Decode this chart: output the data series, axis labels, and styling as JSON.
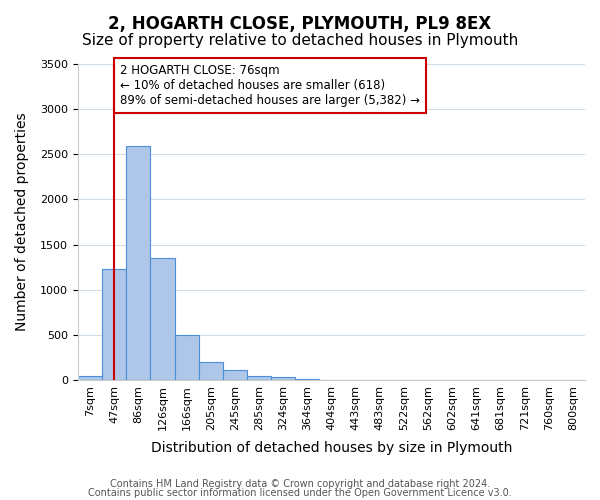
{
  "title": "2, HOGARTH CLOSE, PLYMOUTH, PL9 8EX",
  "subtitle": "Size of property relative to detached houses in Plymouth",
  "xlabel": "Distribution of detached houses by size in Plymouth",
  "ylabel": "Number of detached properties",
  "bin_labels": [
    "7sqm",
    "47sqm",
    "86sqm",
    "126sqm",
    "166sqm",
    "205sqm",
    "245sqm",
    "285sqm",
    "324sqm",
    "364sqm",
    "404sqm",
    "443sqm",
    "483sqm",
    "522sqm",
    "562sqm",
    "602sqm",
    "641sqm",
    "681sqm",
    "721sqm",
    "760sqm",
    "800sqm"
  ],
  "bin_values": [
    50,
    1230,
    2590,
    1350,
    500,
    200,
    110,
    50,
    30,
    15,
    5,
    2,
    2,
    0,
    0,
    0,
    0,
    0,
    0,
    0,
    0
  ],
  "bar_color": "#aec6e8",
  "bar_edge_color": "#4a90d9",
  "vline_x_index": 1.0,
  "vline_color": "#cc0000",
  "annotation_text": "2 HOGARTH CLOSE: 76sqm\n← 10% of detached houses are smaller (618)\n89% of semi-detached houses are larger (5,382) →",
  "annotation_box_color": "#ffffff",
  "annotation_box_edge_color": "#cc0000",
  "ylim": [
    0,
    3500
  ],
  "yticks": [
    0,
    500,
    1000,
    1500,
    2000,
    2500,
    3000,
    3500
  ],
  "footer_line1": "Contains HM Land Registry data © Crown copyright and database right 2024.",
  "footer_line2": "Contains public sector information licensed under the Open Government Licence v3.0.",
  "background_color": "#ffffff",
  "grid_color": "#d0dce8",
  "title_fontsize": 12,
  "subtitle_fontsize": 11,
  "axis_label_fontsize": 10,
  "tick_fontsize": 8,
  "footer_fontsize": 7
}
